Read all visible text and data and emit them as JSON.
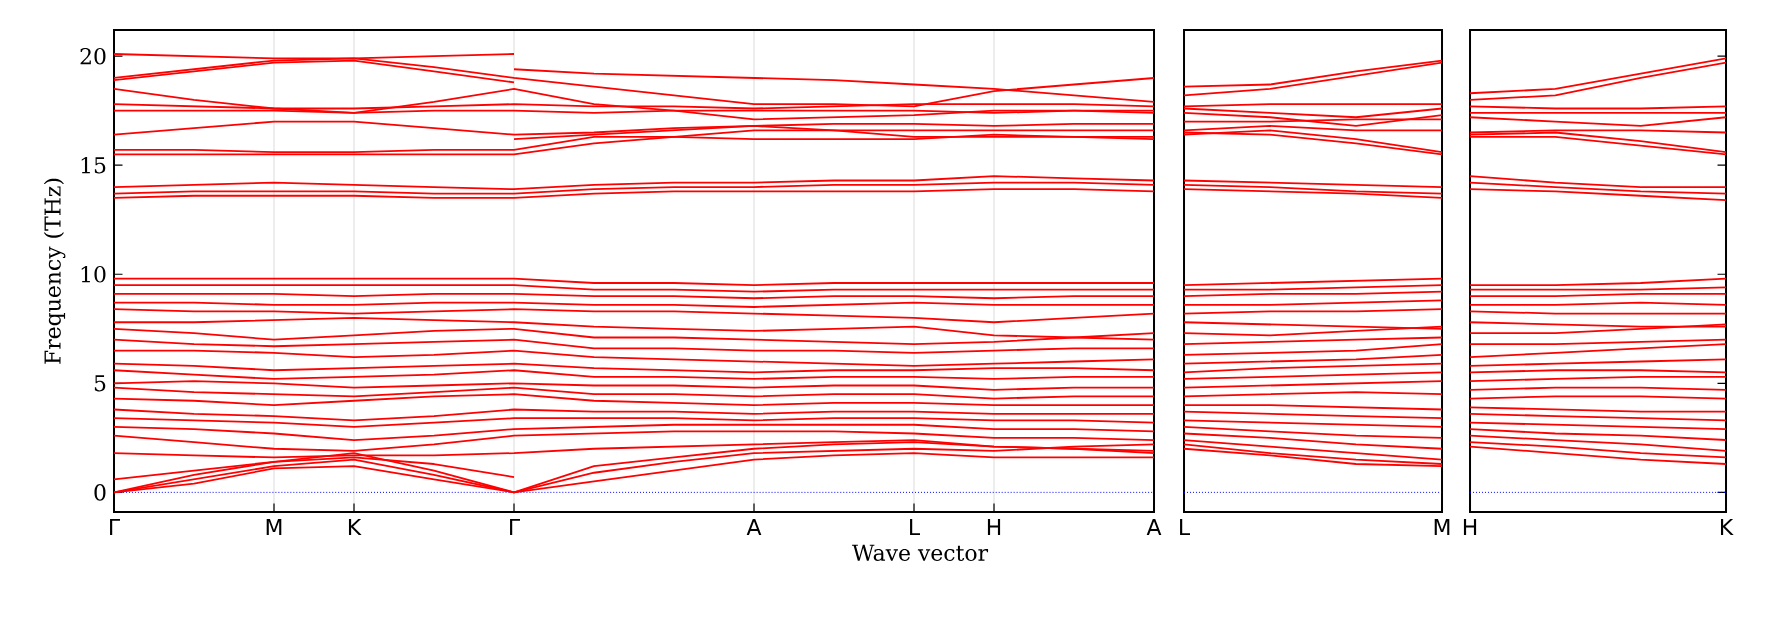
{
  "chart_data": [
    {
      "type": "line",
      "ylabel": "Frequency (THz)",
      "xlabel": "Wave vector",
      "color": "#ff0000",
      "grid": "x",
      "marker": "none",
      "line_style": "solid",
      "categories": [
        "Γ",
        null,
        "M",
        "K",
        null,
        "Γ",
        null,
        null,
        "A",
        null,
        "L",
        "H",
        null,
        "A"
      ],
      "ylim": [
        -0.9,
        21.2
      ],
      "yticks": [
        0,
        5,
        10,
        15,
        20
      ],
      "ref_lines": [
        {
          "axis": "y",
          "value": 0,
          "color": "#0000ff",
          "line_style": "dotted"
        }
      ],
      "series": [
        {
          "values": [
            20.1,
            20.0,
            19.9,
            19.9,
            20.0,
            20.1,
            null,
            null,
            null,
            null,
            null,
            null,
            null,
            null
          ]
        },
        {
          "values": [
            18.9,
            19.3,
            19.7,
            19.8,
            19.3,
            18.8,
            null,
            null,
            null,
            null,
            null,
            null,
            null,
            null
          ]
        },
        {
          "values": [
            null,
            null,
            null,
            null,
            null,
            19.4,
            19.2,
            19.1,
            19.0,
            18.9,
            18.7,
            18.5,
            18.2,
            17.9
          ]
        },
        {
          "values": [
            null,
            null,
            null,
            null,
            null,
            16.2,
            16.4,
            16.6,
            16.8,
            16.6,
            16.3,
            16.3,
            16.3,
            16.3
          ]
        },
        {
          "values": [
            19.0,
            19.4,
            19.8,
            19.9,
            19.5,
            19.0,
            18.6,
            18.2,
            17.8,
            17.8,
            17.7,
            18.4,
            18.7,
            19.0
          ]
        },
        {
          "values": [
            18.5,
            18.0,
            17.6,
            17.4,
            17.9,
            18.5,
            17.8,
            17.5,
            17.1,
            17.2,
            17.3,
            17.5,
            17.5,
            17.4
          ]
        },
        {
          "values": [
            17.8,
            17.7,
            17.6,
            17.6,
            17.7,
            17.8,
            17.7,
            17.7,
            17.6,
            17.7,
            17.8,
            17.8,
            17.8,
            17.7
          ]
        },
        {
          "values": [
            17.5,
            17.5,
            17.5,
            17.4,
            17.5,
            17.5,
            17.4,
            17.5,
            17.5,
            17.5,
            17.5,
            17.4,
            17.5,
            17.5
          ]
        },
        {
          "values": [
            16.4,
            16.7,
            17.0,
            17.0,
            16.7,
            16.4,
            16.5,
            16.7,
            16.8,
            16.9,
            16.9,
            16.8,
            16.9,
            16.9
          ]
        },
        {
          "values": [
            15.7,
            15.7,
            15.6,
            15.6,
            15.7,
            15.7,
            16.3,
            16.3,
            16.2,
            16.2,
            16.2,
            16.4,
            16.3,
            16.2
          ]
        },
        {
          "values": [
            15.5,
            15.5,
            15.5,
            15.5,
            15.5,
            15.5,
            16.0,
            16.3,
            16.6,
            16.6,
            16.6,
            16.6,
            16.6,
            16.6
          ]
        },
        {
          "values": [
            14.0,
            14.1,
            14.2,
            14.1,
            14.0,
            13.9,
            14.1,
            14.2,
            14.2,
            14.3,
            14.3,
            14.5,
            14.4,
            14.3
          ]
        },
        {
          "values": [
            13.7,
            13.8,
            13.8,
            13.8,
            13.7,
            13.7,
            13.9,
            14.0,
            14.0,
            14.1,
            14.1,
            14.2,
            14.2,
            14.1
          ]
        },
        {
          "values": [
            13.5,
            13.6,
            13.6,
            13.6,
            13.5,
            13.5,
            13.7,
            13.8,
            13.8,
            13.8,
            13.8,
            13.9,
            13.9,
            13.8
          ]
        },
        {
          "values": [
            9.8,
            9.8,
            9.8,
            9.8,
            9.8,
            9.8,
            9.6,
            9.6,
            9.5,
            9.6,
            9.6,
            9.6,
            9.6,
            9.6
          ]
        },
        {
          "values": [
            9.5,
            9.5,
            9.5,
            9.5,
            9.5,
            9.5,
            9.3,
            9.3,
            9.2,
            9.3,
            9.3,
            9.3,
            9.3,
            9.3
          ]
        },
        {
          "values": [
            9.1,
            9.1,
            9.1,
            9.0,
            9.1,
            9.1,
            9.0,
            9.0,
            8.9,
            9.0,
            9.0,
            8.9,
            9.0,
            9.0
          ]
        },
        {
          "values": [
            8.7,
            8.7,
            8.6,
            8.6,
            8.7,
            8.7,
            8.6,
            8.6,
            8.5,
            8.6,
            8.7,
            8.6,
            8.6,
            8.6
          ]
        },
        {
          "values": [
            8.4,
            8.3,
            8.3,
            8.2,
            8.3,
            8.4,
            8.3,
            8.3,
            8.2,
            8.1,
            8.0,
            7.8,
            8.0,
            8.2
          ]
        },
        {
          "values": [
            7.8,
            7.8,
            7.9,
            8.0,
            7.9,
            7.8,
            7.6,
            7.5,
            7.4,
            7.5,
            7.6,
            7.2,
            7.1,
            7.0
          ]
        },
        {
          "values": [
            7.5,
            7.3,
            7.0,
            7.2,
            7.4,
            7.5,
            7.1,
            7.1,
            7.0,
            6.9,
            6.8,
            6.9,
            7.1,
            7.3
          ]
        },
        {
          "values": [
            7.0,
            6.8,
            6.7,
            6.8,
            6.9,
            7.0,
            6.6,
            6.6,
            6.5,
            6.5,
            6.4,
            6.5,
            6.6,
            6.6
          ]
        },
        {
          "values": [
            6.5,
            6.5,
            6.4,
            6.2,
            6.3,
            6.5,
            6.2,
            6.1,
            6.0,
            5.9,
            5.8,
            5.9,
            6.0,
            6.1
          ]
        },
        {
          "values": [
            5.9,
            5.8,
            5.6,
            5.7,
            5.8,
            5.9,
            5.7,
            5.6,
            5.5,
            5.6,
            5.6,
            5.7,
            5.7,
            5.6
          ]
        },
        {
          "values": [
            5.6,
            5.4,
            5.2,
            5.3,
            5.4,
            5.6,
            5.3,
            5.3,
            5.2,
            5.3,
            5.3,
            5.2,
            5.3,
            5.3
          ]
        },
        {
          "values": [
            5.0,
            5.1,
            5.0,
            4.8,
            4.9,
            5.0,
            4.9,
            4.9,
            4.8,
            4.9,
            4.9,
            4.7,
            4.8,
            4.8
          ]
        },
        {
          "values": [
            4.8,
            4.6,
            4.5,
            4.4,
            4.6,
            4.8,
            4.5,
            4.5,
            4.4,
            4.5,
            4.5,
            4.3,
            4.4,
            4.4
          ]
        },
        {
          "values": [
            4.3,
            4.2,
            4.0,
            4.2,
            4.4,
            4.5,
            4.2,
            4.1,
            4.0,
            4.1,
            4.1,
            4.0,
            4.0,
            4.0
          ]
        },
        {
          "values": [
            3.8,
            3.6,
            3.5,
            3.3,
            3.5,
            3.8,
            3.7,
            3.7,
            3.6,
            3.7,
            3.7,
            3.6,
            3.6,
            3.6
          ]
        },
        {
          "values": [
            3.4,
            3.3,
            3.2,
            3.0,
            3.2,
            3.4,
            3.4,
            3.4,
            3.3,
            3.4,
            3.4,
            3.3,
            3.3,
            3.2
          ]
        },
        {
          "values": [
            3.0,
            2.9,
            2.7,
            2.4,
            2.6,
            2.9,
            3.0,
            3.1,
            3.1,
            3.1,
            3.1,
            2.9,
            2.9,
            2.8
          ]
        },
        {
          "values": [
            2.6,
            2.3,
            2.0,
            1.9,
            2.2,
            2.6,
            2.7,
            2.8,
            2.8,
            2.8,
            2.7,
            2.5,
            2.5,
            2.4
          ]
        },
        {
          "values": [
            1.8,
            1.7,
            1.6,
            1.7,
            1.7,
            1.8,
            2.0,
            2.1,
            2.2,
            2.3,
            2.4,
            2.1,
            2.0,
            1.8
          ]
        },
        {
          "values": [
            0.6,
            1.0,
            1.4,
            1.6,
            1.3,
            0.7,
            null,
            null,
            null,
            null,
            null,
            null,
            null,
            null
          ]
        },
        {
          "values": [
            0,
            0.8,
            1.4,
            1.8,
            1.0,
            0,
            1.2,
            1.6,
            2.0,
            2.2,
            2.3,
            2.1,
            2.0,
            1.9
          ]
        },
        {
          "values": [
            0,
            0.6,
            1.2,
            1.5,
            0.8,
            0,
            0.9,
            1.4,
            1.8,
            1.9,
            2.0,
            1.9,
            2.1,
            2.2
          ]
        },
        {
          "values": [
            0,
            0.4,
            1.1,
            1.2,
            0.6,
            0,
            0.5,
            1.0,
            1.5,
            1.7,
            1.8,
            1.6,
            1.6,
            1.6
          ]
        }
      ]
    },
    {
      "type": "line",
      "color": "#ff0000",
      "marker": "none",
      "line_style": "solid",
      "tick_labels": "x",
      "categories": [
        "L",
        null,
        null,
        "M"
      ],
      "ylim": [
        -0.9,
        21.2
      ],
      "yticks": [
        0,
        5,
        10,
        15,
        20
      ],
      "ref_lines": [
        {
          "axis": "y",
          "value": 0,
          "color": "#0000ff",
          "line_style": "dotted"
        }
      ],
      "series": [
        {
          "values": [
            18.6,
            18.7,
            19.3,
            19.8
          ]
        },
        {
          "values": [
            18.2,
            18.5,
            19.1,
            19.7
          ]
        },
        {
          "values": [
            17.7,
            17.8,
            17.8,
            17.8
          ]
        },
        {
          "values": [
            17.6,
            17.4,
            17.2,
            17.6
          ]
        },
        {
          "values": [
            17.4,
            17.2,
            16.8,
            17.3
          ]
        },
        {
          "values": [
            17.0,
            17.0,
            17.1,
            17.1
          ]
        },
        {
          "values": [
            16.6,
            16.8,
            16.6,
            16.6
          ]
        },
        {
          "values": [
            16.4,
            16.6,
            16.2,
            15.6
          ]
        },
        {
          "values": [
            16.5,
            16.4,
            16.0,
            15.5
          ]
        },
        {
          "values": [
            14.3,
            14.2,
            14.1,
            14.0
          ]
        },
        {
          "values": [
            14.1,
            14.0,
            13.8,
            13.7
          ]
        },
        {
          "values": [
            13.9,
            13.8,
            13.7,
            13.5
          ]
        },
        {
          "values": [
            9.5,
            9.6,
            9.7,
            9.8
          ]
        },
        {
          "values": [
            9.3,
            9.3,
            9.4,
            9.5
          ]
        },
        {
          "values": [
            9.0,
            9.1,
            9.1,
            9.2
          ]
        },
        {
          "values": [
            8.6,
            8.6,
            8.7,
            8.8
          ]
        },
        {
          "values": [
            8.2,
            8.3,
            8.3,
            8.4
          ]
        },
        {
          "values": [
            7.8,
            7.7,
            7.6,
            7.5
          ]
        },
        {
          "values": [
            7.3,
            7.2,
            7.4,
            7.6
          ]
        },
        {
          "values": [
            6.8,
            6.9,
            7.0,
            7.1
          ]
        },
        {
          "values": [
            6.3,
            6.4,
            6.5,
            6.8
          ]
        },
        {
          "values": [
            5.9,
            6.0,
            6.1,
            6.3
          ]
        },
        {
          "values": [
            5.5,
            5.7,
            5.8,
            5.9
          ]
        },
        {
          "values": [
            5.2,
            5.3,
            5.4,
            5.5
          ]
        },
        {
          "values": [
            4.8,
            4.9,
            5.0,
            5.1
          ]
        },
        {
          "values": [
            4.4,
            4.5,
            4.6,
            4.5
          ]
        },
        {
          "values": [
            4.0,
            4.0,
            3.9,
            3.8
          ]
        },
        {
          "values": [
            3.7,
            3.6,
            3.5,
            3.4
          ]
        },
        {
          "values": [
            3.3,
            3.2,
            3.1,
            3.0
          ]
        },
        {
          "values": [
            3.0,
            2.8,
            2.6,
            2.5
          ]
        },
        {
          "values": [
            2.7,
            2.5,
            2.2,
            2.0
          ]
        },
        {
          "values": [
            2.4,
            2.1,
            1.8,
            1.5
          ]
        },
        {
          "values": [
            2.2,
            1.8,
            1.5,
            1.3
          ]
        },
        {
          "values": [
            2.0,
            1.7,
            1.3,
            1.2
          ]
        }
      ]
    },
    {
      "type": "line",
      "color": "#ff0000",
      "marker": "none",
      "line_style": "solid",
      "tick_labels": "x",
      "categories": [
        "H",
        null,
        null,
        "K"
      ],
      "ylim": [
        -0.9,
        21.2
      ],
      "yticks": [
        0,
        5,
        10,
        15,
        20
      ],
      "ref_lines": [
        {
          "axis": "y",
          "value": 0,
          "color": "#0000ff",
          "line_style": "dotted"
        }
      ],
      "series": [
        {
          "values": [
            18.3,
            18.5,
            19.2,
            19.9
          ]
        },
        {
          "values": [
            18.0,
            18.2,
            19.0,
            19.7
          ]
        },
        {
          "values": [
            17.7,
            17.6,
            17.6,
            17.7
          ]
        },
        {
          "values": [
            17.4,
            17.4,
            17.4,
            17.4
          ]
        },
        {
          "values": [
            17.2,
            17.0,
            16.8,
            17.2
          ]
        },
        {
          "values": [
            16.5,
            16.6,
            16.6,
            16.5
          ]
        },
        {
          "values": [
            16.4,
            16.5,
            16.1,
            15.6
          ]
        },
        {
          "values": [
            16.3,
            16.3,
            15.9,
            15.5
          ]
        },
        {
          "values": [
            14.5,
            14.2,
            14.0,
            14.0
          ]
        },
        {
          "values": [
            14.2,
            14.0,
            13.8,
            13.7
          ]
        },
        {
          "values": [
            13.9,
            13.8,
            13.6,
            13.4
          ]
        },
        {
          "values": [
            9.5,
            9.5,
            9.6,
            9.8
          ]
        },
        {
          "values": [
            9.3,
            9.3,
            9.3,
            9.4
          ]
        },
        {
          "values": [
            9.0,
            9.0,
            9.1,
            9.1
          ]
        },
        {
          "values": [
            8.6,
            8.6,
            8.7,
            8.6
          ]
        },
        {
          "values": [
            8.3,
            8.2,
            8.2,
            8.2
          ]
        },
        {
          "values": [
            7.8,
            7.7,
            7.6,
            7.6
          ]
        },
        {
          "values": [
            7.3,
            7.3,
            7.5,
            7.7
          ]
        },
        {
          "values": [
            6.8,
            6.8,
            6.9,
            7.0
          ]
        },
        {
          "values": [
            6.2,
            6.4,
            6.6,
            6.8
          ]
        },
        {
          "values": [
            5.8,
            5.9,
            6.0,
            6.1
          ]
        },
        {
          "values": [
            5.5,
            5.6,
            5.6,
            5.5
          ]
        },
        {
          "values": [
            5.1,
            5.2,
            5.3,
            5.3
          ]
        },
        {
          "values": [
            4.7,
            4.8,
            4.8,
            4.7
          ]
        },
        {
          "values": [
            4.3,
            4.4,
            4.4,
            4.3
          ]
        },
        {
          "values": [
            3.9,
            3.8,
            3.7,
            3.7
          ]
        },
        {
          "values": [
            3.6,
            3.5,
            3.4,
            3.3
          ]
        },
        {
          "values": [
            3.2,
            3.1,
            3.0,
            2.9
          ]
        },
        {
          "values": [
            2.9,
            2.7,
            2.6,
            2.4
          ]
        },
        {
          "values": [
            2.6,
            2.4,
            2.2,
            1.9
          ]
        },
        {
          "values": [
            2.3,
            2.1,
            1.8,
            1.6
          ]
        },
        {
          "values": [
            2.1,
            1.8,
            1.5,
            1.3
          ]
        }
      ]
    }
  ]
}
